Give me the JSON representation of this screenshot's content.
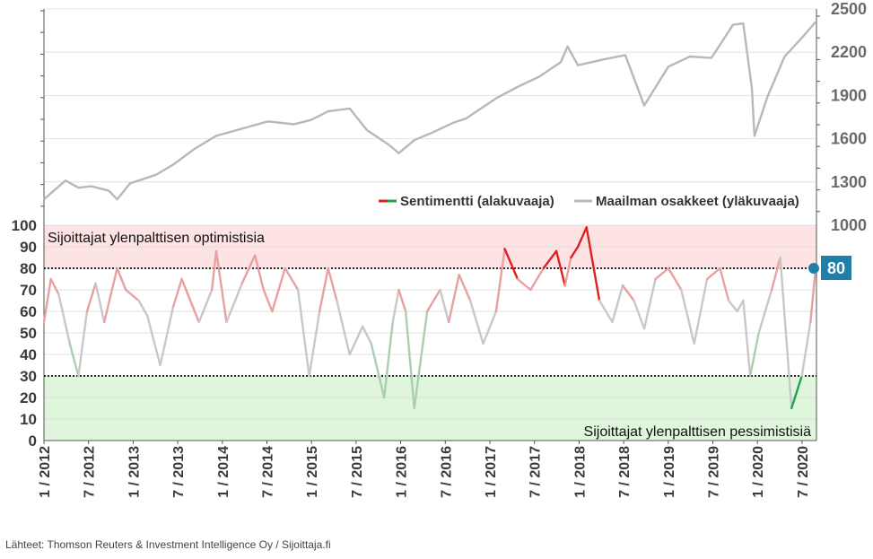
{
  "chart_data": {
    "type": "line",
    "upper_panel": {
      "series_name": "Maailman osakkeet (yläkuvaaja)",
      "y_ticks": [
        1000,
        1300,
        1600,
        1900,
        2200,
        2500
      ],
      "ylim": [
        1000,
        2500
      ],
      "x": [
        2012.0,
        2012.25,
        2012.4,
        2012.55,
        2012.75,
        2012.85,
        2013.0,
        2013.3,
        2013.5,
        2013.75,
        2014.0,
        2014.3,
        2014.6,
        2014.9,
        2015.1,
        2015.3,
        2015.55,
        2015.75,
        2016.0,
        2016.12,
        2016.3,
        2016.5,
        2016.75,
        2016.9,
        2017.25,
        2017.5,
        2017.75,
        2018.0,
        2018.08,
        2018.2,
        2018.5,
        2018.75,
        2018.97,
        2019.25,
        2019.5,
        2019.75,
        2020.0,
        2020.12,
        2020.22,
        2020.25,
        2020.4,
        2020.6,
        2020.8,
        2020.96
      ],
      "y": [
        1180,
        1310,
        1260,
        1270,
        1240,
        1180,
        1290,
        1350,
        1420,
        1530,
        1620,
        1670,
        1720,
        1700,
        1730,
        1790,
        1810,
        1660,
        1560,
        1500,
        1590,
        1640,
        1710,
        1740,
        1880,
        1960,
        2030,
        2130,
        2240,
        2110,
        2150,
        2180,
        1830,
        2100,
        2170,
        2160,
        2390,
        2400,
        1950,
        1620,
        1890,
        2170,
        2300,
        2410
      ]
    },
    "lower_panel": {
      "series_name": "Sentimentti (alakuvaaja)",
      "y_ticks": [
        0,
        10,
        20,
        30,
        40,
        50,
        60,
        70,
        80,
        90,
        100
      ],
      "ylim": [
        0,
        100
      ],
      "x": [
        2012.0,
        2012.08,
        2012.17,
        2012.3,
        2012.4,
        2012.5,
        2012.6,
        2012.7,
        2012.85,
        2012.95,
        2013.1,
        2013.2,
        2013.35,
        2013.5,
        2013.6,
        2013.8,
        2013.95,
        2014.0,
        2014.12,
        2014.3,
        2014.45,
        2014.55,
        2014.65,
        2014.8,
        2014.95,
        2015.08,
        2015.2,
        2015.3,
        2015.4,
        2015.55,
        2015.7,
        2015.8,
        2015.95,
        2016.05,
        2016.12,
        2016.2,
        2016.3,
        2016.45,
        2016.6,
        2016.7,
        2016.82,
        2016.95,
        2017.1,
        2017.25,
        2017.35,
        2017.5,
        2017.65,
        2017.8,
        2017.95,
        2018.05,
        2018.12,
        2018.2,
        2018.3,
        2018.45,
        2018.6,
        2018.72,
        2018.85,
        2018.97,
        2019.1,
        2019.25,
        2019.4,
        2019.55,
        2019.7,
        2019.85,
        2019.95,
        2020.05,
        2020.12,
        2020.2,
        2020.3,
        2020.45,
        2020.55,
        2020.68,
        2020.8,
        2020.9,
        2020.96
      ],
      "y": [
        55,
        75,
        68,
        45,
        30,
        60,
        73,
        55,
        80,
        70,
        65,
        58,
        35,
        62,
        75,
        55,
        70,
        88,
        55,
        73,
        86,
        70,
        60,
        80,
        70,
        30,
        60,
        80,
        65,
        40,
        53,
        45,
        20,
        55,
        70,
        60,
        15,
        60,
        70,
        55,
        77,
        65,
        45,
        60,
        89,
        75,
        70,
        80,
        88,
        72,
        85,
        90,
        99,
        65,
        55,
        72,
        65,
        52,
        75,
        80,
        70,
        45,
        75,
        80,
        65,
        60,
        65,
        30,
        50,
        70,
        85,
        15,
        30,
        55,
        80
      ]
    },
    "zones": [
      {
        "label": "Sijoittajat ylenpalttisen optimistisia",
        "from": 80,
        "to": 100
      },
      {
        "label": "Sijoittajat ylenpalttisen pessimistisiä",
        "from": 0,
        "to": 30
      }
    ],
    "thresholds": [
      80,
      30
    ],
    "current_value": "80",
    "x_tick_labels": [
      "1 / 2012",
      "7 / 2012",
      "1 / 2013",
      "7 / 2013",
      "1 / 2014",
      "7 / 2014",
      "1 / 2015",
      "7 / 2015",
      "1 / 2016",
      "7 / 2016",
      "1 / 2017",
      "7 / 2017",
      "1 / 2018",
      "7 / 2018",
      "1 / 2019",
      "7 / 2019",
      "1 / 2020",
      "7 / 2020"
    ],
    "legend": [
      {
        "label": "Sentimentti (alakuvaaja)",
        "color": "#e02020"
      },
      {
        "label": "Maailman osakkeet (yläkuvaaja)",
        "color": "#b8b8b8"
      }
    ],
    "colors": {
      "bullish": "#e02020",
      "bearish": "#1fa64a",
      "neutral": "#c8c8c8",
      "stock_line": "#b8b8b8",
      "marker": "#1f7fa8",
      "optimism_zone": "#fde3e3",
      "pessimism_zone": "#dff5dc"
    }
  },
  "footer": {
    "source": "Lähteet: Thomson Reuters & Investment Intelligence Oy / Sijoittaja.fi"
  }
}
